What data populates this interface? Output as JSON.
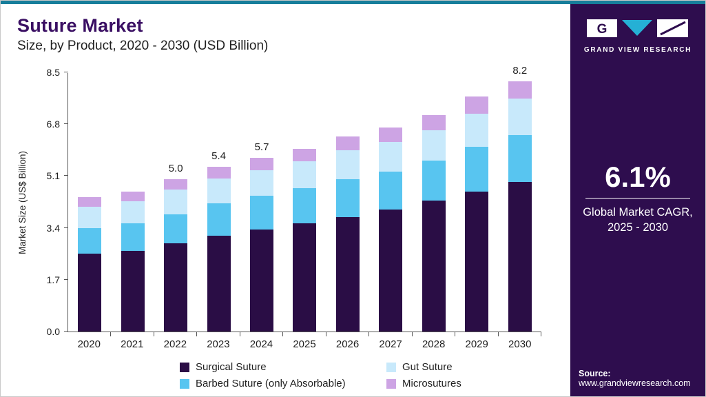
{
  "header": {
    "title": "Suture Market",
    "subtitle": "Size, by Product, 2020 - 2030 (USD Billion)"
  },
  "sidebar": {
    "brand_name": "GRAND VIEW RESEARCH",
    "cagr_value": "6.1%",
    "cagr_caption_line1": "Global Market CAGR,",
    "cagr_caption_line2": "2025 - 2030",
    "source_label": "Source:",
    "source_url": "www.grandviewresearch.com",
    "background_color": "#2e0d4e",
    "logo_triangle_color": "#25b0d5"
  },
  "accent": {
    "top_bar_color": "#177e9b",
    "title_color": "#3a0f63"
  },
  "chart_data": {
    "type": "bar",
    "stacked": true,
    "title": "Suture Market Size, by Product, 2020 - 2030 (USD Billion)",
    "xlabel": "",
    "ylabel": "Market Size (US$ Billion)",
    "ylim": [
      0,
      8.5
    ],
    "ytick_labels": [
      "0.0",
      "1.7",
      "3.4",
      "5.1",
      "6.8",
      "8.5"
    ],
    "grid": false,
    "legend_position": "bottom",
    "categories": [
      "2020",
      "2021",
      "2022",
      "2023",
      "2024",
      "2025",
      "2026",
      "2027",
      "2028",
      "2029",
      "2030"
    ],
    "series": [
      {
        "name": "Surgical Suture",
        "color": "#2a0d45",
        "values": [
          2.55,
          2.65,
          2.9,
          3.15,
          3.35,
          3.55,
          3.75,
          4.0,
          4.3,
          4.6,
          4.9
        ]
      },
      {
        "name": "Barbed Suture (only Absorbable)",
        "color": "#58c5f0",
        "values": [
          0.85,
          0.9,
          0.95,
          1.05,
          1.1,
          1.15,
          1.25,
          1.25,
          1.3,
          1.45,
          1.55
        ]
      },
      {
        "name": "Gut Suture",
        "color": "#c8e9fb",
        "values": [
          0.7,
          0.72,
          0.8,
          0.82,
          0.85,
          0.88,
          0.95,
          0.97,
          1.0,
          1.1,
          1.2
        ]
      },
      {
        "name": "Microsutures",
        "color": "#cda4e4",
        "values": [
          0.3,
          0.33,
          0.35,
          0.38,
          0.4,
          0.42,
          0.45,
          0.48,
          0.5,
          0.55,
          0.55
        ]
      }
    ],
    "totals": [
      4.4,
      4.6,
      5.0,
      5.4,
      5.7,
      6.0,
      6.4,
      6.7,
      7.1,
      7.7,
      8.2
    ],
    "bar_value_labels": {
      "2022": "5.0",
      "2023": "5.4",
      "2024": "5.7",
      "2030": "8.2"
    },
    "legend_display_order": [
      "Surgical Suture",
      "Gut Suture",
      "Barbed Suture (only Absorbable)",
      "Microsutures"
    ]
  }
}
